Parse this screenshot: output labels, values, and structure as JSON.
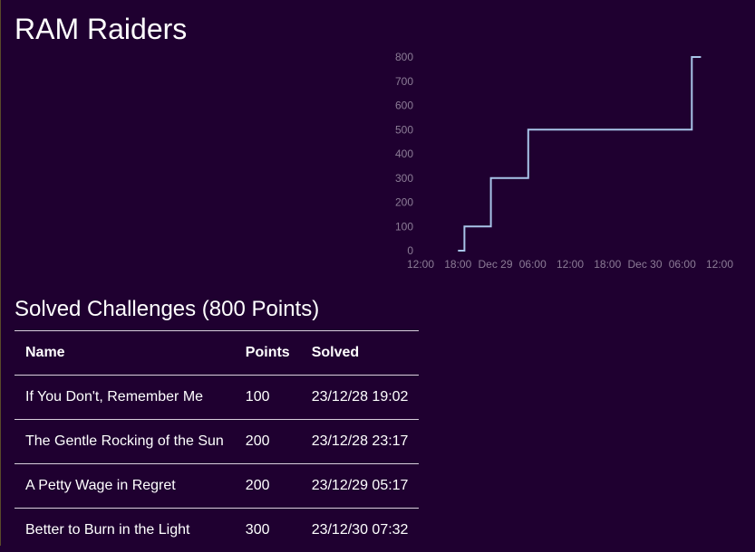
{
  "team": {
    "name": "RAM Raiders"
  },
  "solved": {
    "heading": "Solved Challenges (800 Points)",
    "columns": [
      "Name",
      "Points",
      "Solved"
    ],
    "rows": [
      {
        "name": "If You Don't, Remember Me",
        "points": "100",
        "solved": "23/12/28 19:02"
      },
      {
        "name": "The Gentle Rocking of the Sun",
        "points": "200",
        "solved": "23/12/28 23:17"
      },
      {
        "name": "A Petty Wage in Regret",
        "points": "200",
        "solved": "23/12/29 05:17"
      },
      {
        "name": "Better to Burn in the Light",
        "points": "300",
        "solved": "23/12/30 07:32"
      }
    ]
  },
  "chart_data": {
    "type": "line",
    "step": true,
    "line_color": "#a8c4e8",
    "axis_text_color": "#8c7c96",
    "grid": false,
    "y_ticks": [
      "0",
      "100",
      "200",
      "300",
      "400",
      "500",
      "600",
      "700",
      "800"
    ],
    "x_ticks": [
      "12:00",
      "18:00",
      "Dec 29",
      "06:00",
      "12:00",
      "18:00",
      "Dec 30",
      "06:00",
      "12:00"
    ],
    "x_range": [
      "2023-12-28 12:00",
      "2023-12-30 12:00"
    ],
    "ylim": [
      0,
      800
    ],
    "points": [
      {
        "x": "2023-12-28 18:00",
        "y": 0
      },
      {
        "x": "2023-12-28 19:02",
        "y": 100
      },
      {
        "x": "2023-12-28 23:17",
        "y": 300
      },
      {
        "x": "2023-12-29 05:17",
        "y": 500
      },
      {
        "x": "2023-12-30 07:32",
        "y": 800
      },
      {
        "x": "2023-12-30 09:00",
        "y": 800
      }
    ]
  }
}
